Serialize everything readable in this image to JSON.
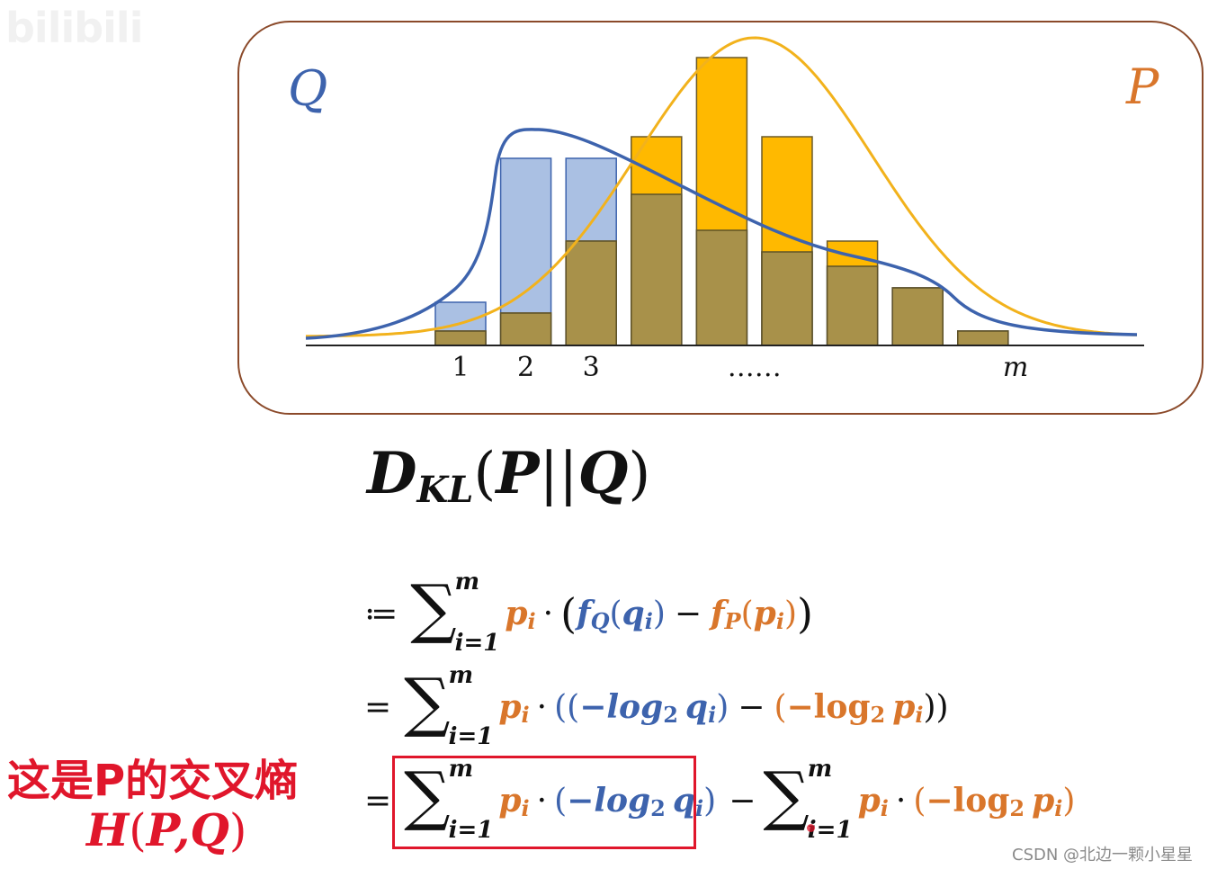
{
  "watermark_logo": "bilibili",
  "chart_data": {
    "type": "bar",
    "series": [
      {
        "name": "Q",
        "color": "#3d63ad",
        "bar_color": "#aac0e3",
        "values": [
          0.12,
          0.52,
          0.52,
          0.42,
          0.32,
          0.26,
          0.22,
          0.16,
          0.04
        ]
      },
      {
        "name": "P",
        "color": "#f2b21c",
        "bar_color": "#ffb900",
        "values": [
          0.04,
          0.09,
          0.29,
          0.58,
          0.8,
          0.58,
          0.29,
          0.16,
          0.04
        ]
      }
    ],
    "overlap_color": "#a8914a",
    "x_tick_labels": [
      {
        "bar": 0,
        "text": "1"
      },
      {
        "bar": 1,
        "text": "2"
      },
      {
        "bar": 2,
        "text": "3"
      },
      {
        "bar": 4.5,
        "text": "……"
      },
      {
        "bar": 8.5,
        "text": "m"
      }
    ],
    "curve_P": {
      "peak_bar": 4.5,
      "height": 0.83,
      "width_bars": 1.8
    },
    "curve_Q": {
      "peak_bar": 1.2,
      "height": 0.6
    }
  },
  "labels": {
    "Q": "Q",
    "P": "P"
  },
  "title": {
    "D": "D",
    "sub": "KL",
    "open": "(",
    "P": "P",
    "bars": "||",
    "Q": "Q",
    "close": ")"
  },
  "eq1": {
    "op": "≔",
    "sum_upper": "m",
    "sum_lower": "i=1",
    "p": "p",
    "i": "i",
    "dot": "·",
    "lp": "(",
    "fQ": "f",
    "Q": "Q",
    "q": "q",
    "minus": "−",
    "fP": "f",
    "P": "P",
    "rp": ")"
  },
  "eq2": {
    "op": "=",
    "sum_upper": "m",
    "sum_lower": "i=1",
    "p": "p",
    "i": "i",
    "dot": "·",
    "lp": "((",
    "neg": "−",
    "log_blue": "log",
    "two": "2",
    "q": "q",
    "paren": ")",
    "minus": "−",
    "lp2": "(",
    "neg2": "−",
    "log": "log",
    "rp": "))"
  },
  "eq3": {
    "op": "=",
    "sum_upper": "m",
    "sum_lower": "i=1",
    "p": "p",
    "i": "i",
    "dot": "·",
    "lp": "(",
    "neg": "−",
    "log_blue": "log",
    "two": "2",
    "q": "q",
    "rp": ")",
    "minus": "−",
    "neg2": "−",
    "log": "log"
  },
  "annotation": {
    "cn": "这是P的交叉熵",
    "h": "H",
    "open": "(",
    "P": "P",
    "comma": ",",
    "Q": "Q",
    "close": ")"
  },
  "credit": "CSDN @北边一颗小星星",
  "colors": {
    "orange": "#d9762b",
    "blue": "#3d63ad",
    "red": "#e0162b",
    "frame": "#8b4a2a"
  }
}
